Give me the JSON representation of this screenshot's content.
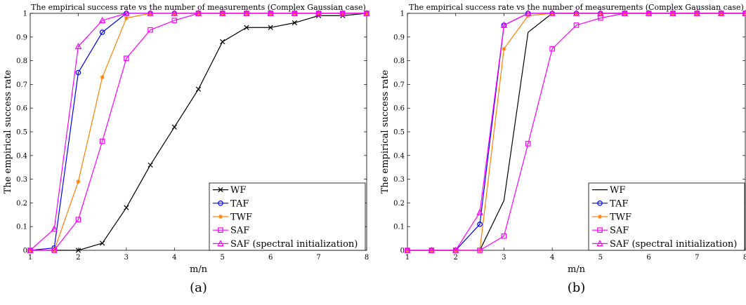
{
  "chart_data": [
    {
      "type": "line",
      "title": "The empirical success rate vs the number of measurements (Complex Gaussian case)",
      "xlabel": "m/n",
      "ylabel": "The empirical success rate",
      "caption": "(a)",
      "xlim": [
        1,
        8
      ],
      "ylim": [
        0,
        1
      ],
      "xticks": [
        "1",
        "2",
        "3",
        "4",
        "5",
        "6",
        "7",
        "8"
      ],
      "yticks": [
        "0",
        "0.1",
        "0.2",
        "0.3",
        "0.4",
        "0.5",
        "0.6",
        "0.7",
        "0.8",
        "0.9",
        "1"
      ],
      "grid": false,
      "legend_position": "bottom-right",
      "series": [
        {
          "name": "WF",
          "color": "#000000",
          "marker": "x",
          "x": [
            1,
            1.5,
            2,
            2.5,
            3,
            3.5,
            4,
            4.5,
            5,
            5.5,
            6,
            6.5,
            7,
            7.5,
            8
          ],
          "y": [
            0,
            0,
            0,
            0.03,
            0.18,
            0.36,
            0.52,
            0.68,
            0.88,
            0.94,
            0.94,
            0.96,
            0.99,
            0.99,
            1
          ]
        },
        {
          "name": "TAF",
          "color": "#0000ff",
          "marker": "o",
          "x": [
            1,
            1.5,
            2,
            2.5,
            3,
            3.5,
            4,
            4.5,
            5,
            5.5,
            6,
            6.5,
            7,
            7.5,
            8
          ],
          "y": [
            0,
            0.01,
            0.75,
            0.92,
            1,
            1,
            1,
            1,
            1,
            1,
            1,
            1,
            1,
            1,
            1
          ]
        },
        {
          "name": "TWF",
          "color": "#ff8000",
          "marker": "*",
          "x": [
            1,
            1.5,
            2,
            2.5,
            3,
            3.5,
            4,
            4.5,
            5,
            5.5,
            6,
            6.5,
            7,
            7.5,
            8
          ],
          "y": [
            0,
            0,
            0.29,
            0.73,
            0.98,
            1,
            1,
            1,
            1,
            1,
            1,
            1,
            1,
            1,
            1
          ]
        },
        {
          "name": "SAF",
          "color": "#ff00ff",
          "marker": "s",
          "x": [
            1,
            1.5,
            2,
            2.5,
            3,
            3.5,
            4,
            4.5,
            5,
            5.5,
            6,
            6.5,
            7,
            7.5,
            8
          ],
          "y": [
            0,
            0,
            0.13,
            0.46,
            0.81,
            0.93,
            0.97,
            1,
            1,
            1,
            1,
            1,
            1,
            1,
            1
          ]
        },
        {
          "name": "SAF (spectral initialization)",
          "color": "#ff00ff",
          "marker": "^",
          "x": [
            1,
            1.5,
            2,
            2.5,
            3,
            3.5,
            4,
            4.5,
            5,
            5.5,
            6,
            6.5,
            7,
            7.5,
            8
          ],
          "y": [
            0,
            0.09,
            0.86,
            0.97,
            1,
            1,
            1,
            1,
            1,
            1,
            1,
            1,
            1,
            1,
            1
          ]
        }
      ]
    },
    {
      "type": "line",
      "title": "The empirical success rate vs the number of measurements (Complex Gaussian case)",
      "xlabel": "m/n",
      "ylabel": "The empirical success rate",
      "caption": "(b)",
      "xlim": [
        1,
        8
      ],
      "ylim": [
        0,
        1
      ],
      "xticks": [
        "1",
        "2",
        "3",
        "4",
        "5",
        "6",
        "7",
        "8"
      ],
      "yticks": [
        "0",
        "0.1",
        "0.2",
        "0.3",
        "0.4",
        "0.5",
        "0.6",
        "0.7",
        "0.8",
        "0.9",
        "1"
      ],
      "grid": false,
      "legend_position": "bottom-right",
      "series": [
        {
          "name": "WF",
          "color": "#000000",
          "marker": "none",
          "x": [
            1,
            1.5,
            2,
            2.5,
            3,
            3.5,
            4,
            4.5,
            5,
            5.5,
            6,
            6.5,
            7,
            7.5,
            8
          ],
          "y": [
            0,
            0,
            0,
            0,
            0.21,
            0.92,
            1,
            1,
            1,
            1,
            1,
            1,
            1,
            1,
            1
          ]
        },
        {
          "name": "TAF",
          "color": "#0000ff",
          "marker": "o",
          "x": [
            1,
            1.5,
            2,
            2.5,
            3,
            3.5,
            4,
            4.5,
            5,
            5.5,
            6,
            6.5,
            7,
            7.5,
            8
          ],
          "y": [
            0,
            0,
            0,
            0.11,
            0.95,
            1,
            1,
            1,
            1,
            1,
            1,
            1,
            1,
            1,
            1
          ]
        },
        {
          "name": "TWF",
          "color": "#ff8000",
          "marker": "*",
          "x": [
            1,
            1.5,
            2,
            2.5,
            3,
            3.5,
            4,
            4.5,
            5,
            5.5,
            6,
            6.5,
            7,
            7.5,
            8
          ],
          "y": [
            0,
            0,
            0,
            0,
            0.85,
            0.99,
            1,
            1,
            1,
            1,
            1,
            1,
            1,
            1,
            1
          ]
        },
        {
          "name": "SAF",
          "color": "#ff00ff",
          "marker": "s",
          "x": [
            1,
            1.5,
            2,
            2.5,
            3,
            3.5,
            4,
            4.5,
            5,
            5.5,
            6,
            6.5,
            7,
            7.5,
            8
          ],
          "y": [
            0,
            0,
            0,
            0,
            0.06,
            0.45,
            0.85,
            0.95,
            0.98,
            1,
            1,
            1,
            1,
            1,
            1
          ]
        },
        {
          "name": "SAF (spectral initialization)",
          "color": "#ff00ff",
          "marker": "^",
          "x": [
            1,
            1.5,
            2,
            2.5,
            3,
            3.5,
            4,
            4.5,
            5,
            5.5,
            6,
            6.5,
            7,
            7.5,
            8
          ],
          "y": [
            0,
            0,
            0,
            0.16,
            0.95,
            1,
            1,
            1,
            1,
            1,
            1,
            1,
            1,
            1,
            1
          ]
        }
      ]
    }
  ]
}
